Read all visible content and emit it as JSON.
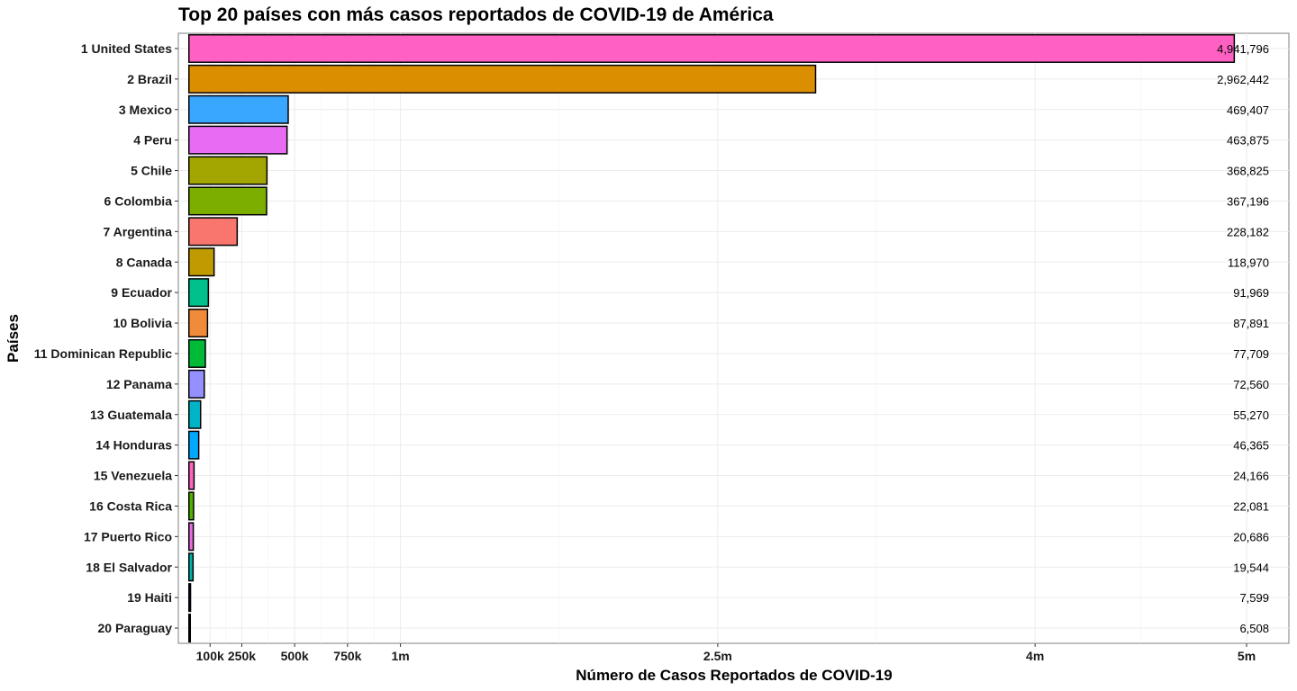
{
  "chart_data": {
    "type": "bar",
    "orientation": "horizontal",
    "title": "Top 20 países con más casos reportados de COVID-19 de América",
    "xlabel": "Número de Casos Reportados de COVID-19",
    "ylabel": "Países",
    "xlim": [
      -50000,
      5200000
    ],
    "grid": true,
    "legend": "none",
    "xticks": [
      {
        "value": 100000,
        "label": "100k"
      },
      {
        "value": 250000,
        "label": "250k"
      },
      {
        "value": 500000,
        "label": "500k"
      },
      {
        "value": 750000,
        "label": "750k"
      },
      {
        "value": 1000000,
        "label": "1m"
      },
      {
        "value": 2500000,
        "label": "2.5m"
      },
      {
        "value": 4000000,
        "label": "4m"
      },
      {
        "value": 5000000,
        "label": "5m"
      }
    ],
    "categories": [
      "1 United States",
      "2 Brazil",
      "3 Mexico",
      "4 Peru",
      "5 Chile",
      "6 Colombia",
      "7 Argentina",
      "8 Canada",
      "9 Ecuador",
      "10 Bolivia",
      "11 Dominican Republic",
      "12 Panama",
      "13 Guatemala",
      "14 Honduras",
      "15 Venezuela",
      "16 Costa Rica",
      "17 Puerto Rico",
      "18 El Salvador",
      "19 Haiti",
      "20 Paraguay"
    ],
    "values": [
      4941796,
      2962442,
      469407,
      463875,
      368825,
      367196,
      228182,
      118970,
      91969,
      87891,
      77709,
      72560,
      55270,
      46365,
      24166,
      22081,
      20686,
      19544,
      7599,
      6508
    ],
    "value_labels": [
      "4,941,796",
      "2,962,442",
      "469,407",
      "463,875",
      "368,825",
      "367,196",
      "228,182",
      "118,970",
      "91,969",
      "87,891",
      "77,709",
      "72,560",
      "55,270",
      "46,365",
      "24,166",
      "22,081",
      "20,686",
      "19,544",
      "7,599",
      "6,508"
    ],
    "colors": [
      "#FF61C3",
      "#DB8E00",
      "#39A6FF",
      "#E76BF3",
      "#A3A500",
      "#7CAE00",
      "#F8766D",
      "#BF9A00",
      "#00C08B",
      "#EF8B3A",
      "#00BA38",
      "#9590FF",
      "#00B4C8",
      "#00A9FF",
      "#FF62BC",
      "#4FB000",
      "#E86BE0",
      "#00AFA6",
      "#1D1D6E",
      "#111111"
    ]
  }
}
